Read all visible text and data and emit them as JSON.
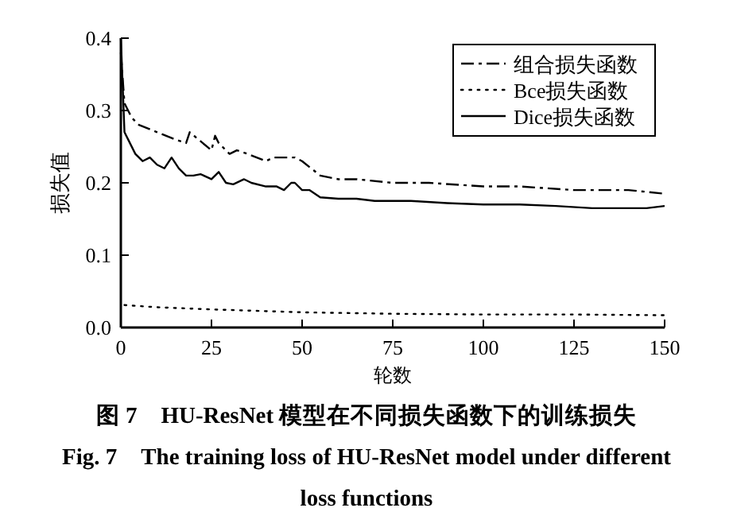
{
  "chart_data": {
    "type": "line",
    "title": "图 7　HU-ResNet 模型在不同损失函数下的训练损失",
    "subtitle": "Fig. 7　The training loss of HU-ResNet model under different loss functions",
    "xlabel": "轮数",
    "ylabel": "损失值",
    "xlim": [
      0,
      150
    ],
    "ylim": [
      0,
      0.4
    ],
    "xticks": [
      0,
      25,
      50,
      75,
      100,
      125,
      150
    ],
    "yticks": [
      {
        "value": 0,
        "label": "0.0"
      },
      0.1,
      0.2,
      0.3,
      0.4
    ],
    "legend": "top right",
    "grid": false,
    "marker": "none",
    "series": [
      {
        "name": "组合损失函数",
        "color": "#000000",
        "line_style": "dashdot",
        "x": [
          0,
          1,
          3,
          5,
          10,
          15,
          18,
          19,
          25,
          26,
          27,
          30,
          32,
          35,
          40,
          42,
          48,
          50,
          55,
          60,
          65,
          75,
          85,
          100,
          110,
          125,
          130,
          140,
          150
        ],
        "values": [
          0.38,
          0.31,
          0.29,
          0.28,
          0.27,
          0.26,
          0.255,
          0.27,
          0.245,
          0.265,
          0.255,
          0.24,
          0.245,
          0.24,
          0.23,
          0.235,
          0.235,
          0.23,
          0.21,
          0.205,
          0.205,
          0.2,
          0.2,
          0.195,
          0.195,
          0.19,
          0.19,
          0.19,
          0.185
        ]
      },
      {
        "name": "Bce损失函数",
        "color": "#000000",
        "line_style": "dotted",
        "x": [
          1,
          10,
          25,
          50,
          75,
          100,
          125,
          150
        ],
        "values": [
          0.031,
          0.028,
          0.025,
          0.021,
          0.019,
          0.018,
          0.018,
          0.017
        ]
      },
      {
        "name": "Dice损失函数",
        "color": "#000000",
        "line_style": "solid",
        "x": [
          0,
          1,
          2,
          4,
          6,
          8,
          10,
          12,
          14,
          16,
          18,
          20,
          22,
          25,
          27,
          29,
          31,
          34,
          36,
          40,
          43,
          45,
          47,
          48,
          50,
          52,
          55,
          60,
          65,
          70,
          75,
          80,
          90,
          100,
          110,
          120,
          130,
          140,
          145,
          150
        ],
        "values": [
          0.4,
          0.27,
          0.26,
          0.24,
          0.23,
          0.235,
          0.225,
          0.22,
          0.235,
          0.22,
          0.21,
          0.21,
          0.212,
          0.205,
          0.215,
          0.2,
          0.198,
          0.205,
          0.2,
          0.195,
          0.195,
          0.19,
          0.2,
          0.2,
          0.19,
          0.19,
          0.18,
          0.178,
          0.178,
          0.175,
          0.175,
          0.175,
          0.172,
          0.17,
          0.17,
          0.168,
          0.165,
          0.165,
          0.165,
          0.168
        ]
      }
    ]
  }
}
